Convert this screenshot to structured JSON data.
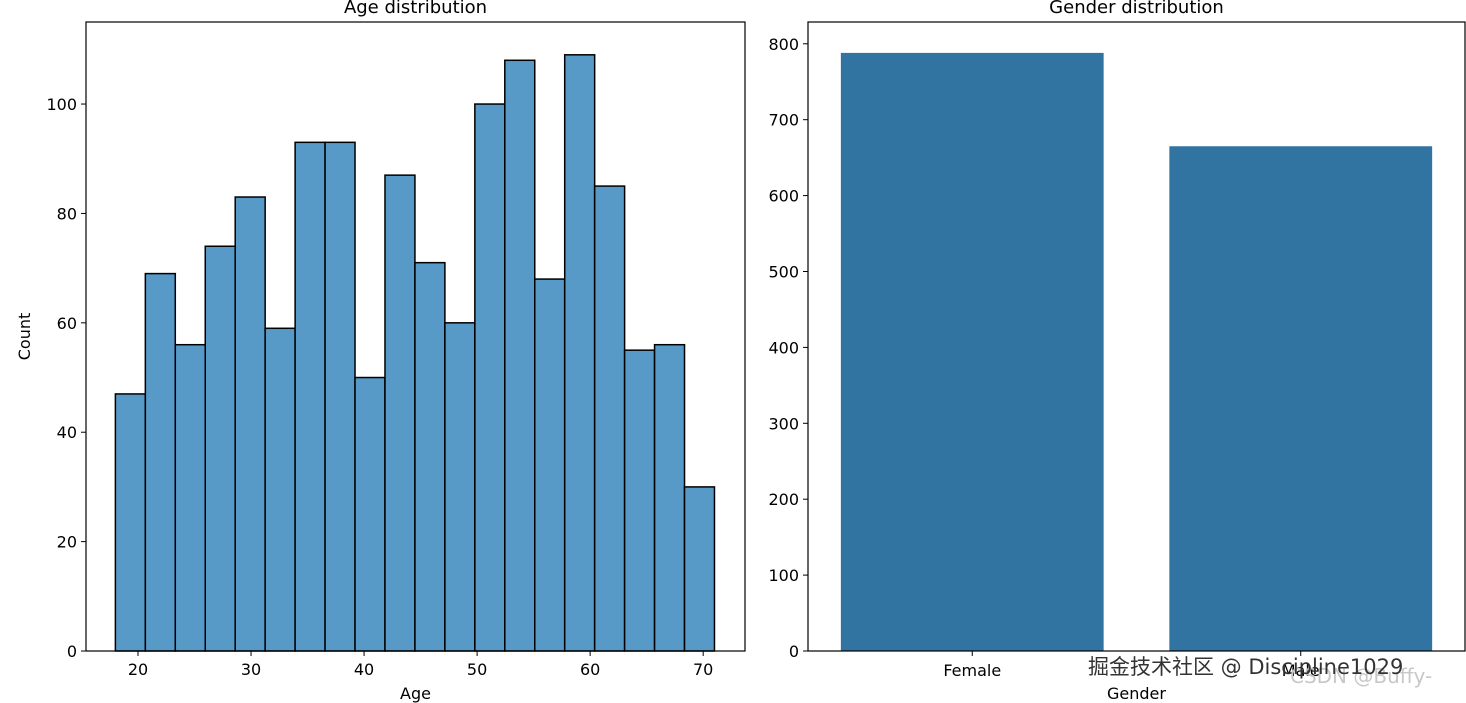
{
  "chart_data": [
    {
      "type": "histogram",
      "title": "Age distribution",
      "x_label": "Age",
      "y_label": "Count",
      "bins": [
        18,
        20.65,
        23.3,
        25.95,
        28.6,
        31.25,
        33.9,
        36.55,
        39.2,
        41.85,
        44.5,
        47.15,
        49.8,
        52.45,
        55.1,
        57.75,
        60.4,
        63.05,
        65.7,
        68.35,
        71
      ],
      "values": [
        47,
        69,
        56,
        74,
        83,
        59,
        93,
        93,
        50,
        87,
        71,
        60,
        100,
        108,
        68,
        109,
        85,
        55,
        56,
        30
      ],
      "color": "#5799c7",
      "edge_color": "#000000",
      "xlim": [
        15.4,
        73.7
      ],
      "xticks": [
        20,
        30,
        40,
        50,
        60,
        70
      ],
      "ylim": [
        0,
        115
      ],
      "yticks": [
        0,
        20,
        40,
        60,
        80,
        100
      ]
    },
    {
      "type": "bar",
      "title": "Gender distribution",
      "x_label": "Gender",
      "categories": [
        "Female",
        "Male"
      ],
      "values": [
        788,
        665
      ],
      "color": "#3274a1",
      "ylim": [
        0,
        828.7
      ],
      "yticks": [
        0,
        100,
        200,
        300,
        400,
        500,
        600,
        700,
        800
      ]
    }
  ],
  "watermarks": [
    "掘金技术社区 @ Discipline1029",
    "CSDN @Buffy-"
  ]
}
